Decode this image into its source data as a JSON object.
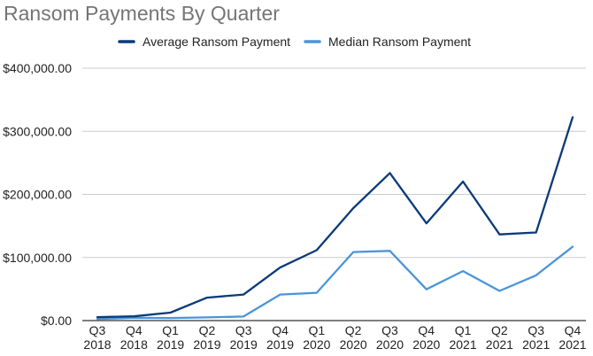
{
  "chart_data": {
    "type": "line",
    "title": "Ransom Payments By Quarter",
    "xlabel": "",
    "ylabel": "",
    "categories": [
      [
        "Q3",
        "2018"
      ],
      [
        "Q4",
        "2018"
      ],
      [
        "Q1",
        "2019"
      ],
      [
        "Q2",
        "2019"
      ],
      [
        "Q3",
        "2019"
      ],
      [
        "Q4",
        "2019"
      ],
      [
        "Q1",
        "2020"
      ],
      [
        "Q2",
        "2020"
      ],
      [
        "Q3",
        "2020"
      ],
      [
        "Q4",
        "2020"
      ],
      [
        "Q1",
        "2021"
      ],
      [
        "Q2",
        "2021"
      ],
      [
        "Q3",
        "2021"
      ],
      [
        "Q4",
        "2021"
      ]
    ],
    "ylim": [
      0,
      400000
    ],
    "yticks": [
      0,
      100000,
      200000,
      300000,
      400000
    ],
    "ytick_labels": [
      "$0.00",
      "$100,000.00",
      "$200,000.00",
      "$300,000.00",
      "$400,000.00"
    ],
    "grid": true,
    "legend_position": "top",
    "series": [
      {
        "name": "Average Ransom Payment",
        "color": "#0b3a78",
        "values": [
          5500,
          6700,
          12700,
          36300,
          41200,
          84100,
          111600,
          178300,
          233800,
          154100,
          220300,
          136600,
          139700,
          322200
        ]
      },
      {
        "name": "Median Ransom Payment",
        "color": "#4a95d9",
        "values": [
          2500,
          4300,
          4000,
          5000,
          6400,
          41200,
          44000,
          108600,
          110500,
          49500,
          78400,
          47000,
          71700,
          117000
        ]
      }
    ]
  }
}
